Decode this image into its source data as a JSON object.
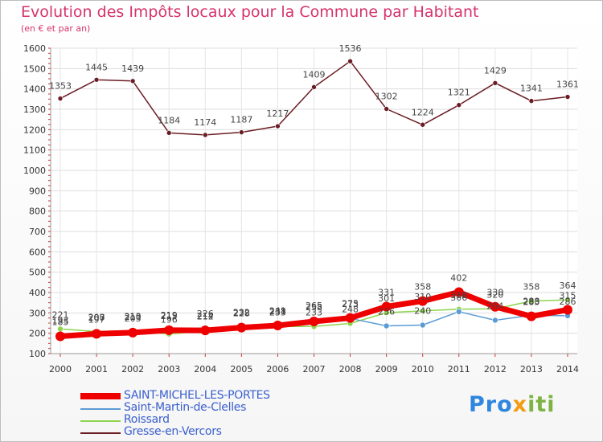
{
  "title": "Evolution des Impôts locaux pour la Commune par Habitant",
  "subtitle": "(en € et par an)",
  "brand": {
    "part1": "Pro",
    "part2": "x",
    "part3": "iti"
  },
  "chart_data": {
    "type": "line",
    "title": "Evolution des Impôts locaux pour la Commune par Habitant",
    "subtitle": "(en € et par an)",
    "xlabel": "",
    "ylabel": "",
    "x": [
      2000,
      2001,
      2002,
      2003,
      2004,
      2005,
      2006,
      2007,
      2008,
      2009,
      2010,
      2011,
      2012,
      2013,
      2014
    ],
    "ylim": [
      100,
      1600
    ],
    "yticks": [
      100,
      200,
      300,
      400,
      500,
      600,
      700,
      800,
      900,
      1000,
      1100,
      1200,
      1300,
      1400,
      1500,
      1600
    ],
    "grid": true,
    "legend_position": "bottom-left",
    "series": [
      {
        "name": "SAINT-MICHEL-LES-PORTES",
        "color": "#ee0000",
        "values": [
          185,
          197,
          203,
          215,
          214,
          228,
          238,
          258,
          275,
          331,
          358,
          402,
          330,
          283,
          315
        ]
      },
      {
        "name": "Saint-Martin-de-Clelles",
        "color": "#5b9bd5",
        "values": [
          193,
          207,
          210,
          219,
          226,
          232,
          241,
          265,
          273,
          236,
          240,
          306,
          264,
          288,
          286
        ]
      },
      {
        "name": "Roissard",
        "color": "#8fd44f",
        "values": [
          221,
          208,
          213,
          196,
          212,
          228,
          233,
          233,
          248,
          301,
          310,
          318,
          320,
          358,
          364
        ]
      },
      {
        "name": "Gresse-en-Vercors",
        "color": "#6a1d24",
        "values": [
          1353,
          1445,
          1439,
          1184,
          1174,
          1187,
          1217,
          1409,
          1536,
          1302,
          1224,
          1321,
          1429,
          1341,
          1361
        ]
      }
    ],
    "data_labels": {
      "SAINT-MICHEL-LES-PORTES": [
        "185",
        "197",
        "203",
        "215",
        "214",
        "228",
        "238",
        "258",
        "275",
        "331",
        "358",
        "402",
        "330",
        "283",
        "315"
      ],
      "Saint-Martin-de-Clelles": [
        "193",
        "207",
        "210",
        "219",
        "226",
        "232",
        "241",
        "265",
        "273",
        "236",
        "240",
        "306",
        "264",
        "288",
        "286"
      ],
      "Roissard": [
        "221",
        "208",
        "213",
        "196",
        "212",
        "228",
        "233",
        "233",
        "248",
        "301",
        "310",
        "318",
        "320",
        "358",
        "364"
      ],
      "Gresse-en-Vercors": [
        "1353",
        "1445",
        "1439",
        "1184",
        "1174",
        "1187",
        "1217",
        "1409",
        "1536",
        "1302",
        "1224",
        "1321",
        "1429",
        "1341",
        "1361"
      ]
    }
  }
}
